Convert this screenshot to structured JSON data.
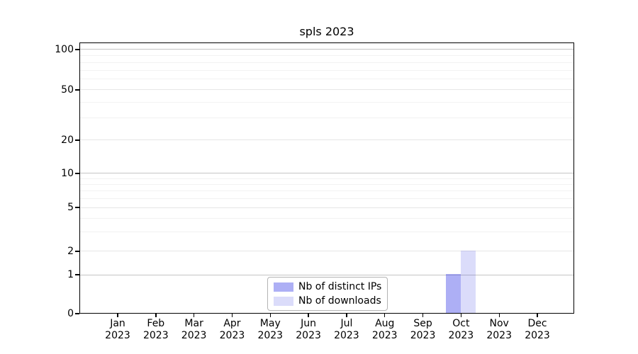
{
  "chart_data": {
    "type": "bar",
    "title": "spls 2023",
    "x_tick_months": [
      "Jan",
      "Feb",
      "Mar",
      "Apr",
      "May",
      "Jun",
      "Jul",
      "Aug",
      "Sep",
      "Oct",
      "Nov",
      "Dec"
    ],
    "x_tick_year": "2023",
    "series": [
      {
        "name": "Nb of distinct IPs",
        "color": "rgba(74,78,232,0.45)",
        "values": [
          0,
          0,
          0,
          0,
          0,
          0,
          0,
          0,
          0,
          1,
          0,
          0
        ]
      },
      {
        "name": "Nb of downloads",
        "color": "rgba(74,78,232,0.20)",
        "values": [
          0,
          0,
          0,
          0,
          0,
          0,
          0,
          0,
          0,
          2,
          0,
          0
        ]
      }
    ],
    "y_axis": {
      "scale": "symlog",
      "major_ticks": [
        0,
        1,
        2,
        5,
        10,
        20,
        50,
        100
      ],
      "minor_gridlines": [
        3,
        4,
        6,
        7,
        8,
        9,
        30,
        40,
        60,
        70,
        80,
        90
      ],
      "decade_values": [
        1,
        10,
        100
      ]
    },
    "legend": {
      "position": "lower center"
    },
    "colors": {
      "grid_minor": "#f2f2f2",
      "grid_major": "#e6e6e6",
      "grid_decade": "#c4c4c4",
      "spine": "#000000",
      "background": "#ffffff"
    }
  }
}
